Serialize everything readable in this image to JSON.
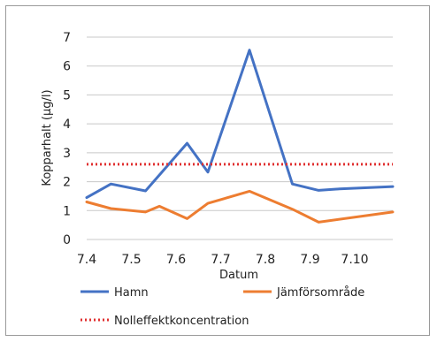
{
  "chart_data": {
    "type": "line",
    "title": "",
    "xlabel": "Datum",
    "ylabel": "Kopparhalt (µg/l)",
    "x_tick_labels": [
      "7.4",
      "7.5",
      "7.6",
      "7.7",
      "7.8",
      "7.9",
      "7.10"
    ],
    "ylim": [
      0,
      7
    ],
    "y_ticks": [
      0,
      1,
      2,
      3,
      4,
      5,
      6,
      7
    ],
    "grid": true,
    "legend_position": "bottom",
    "series": [
      {
        "name": "Hamn",
        "color": "#4472c4",
        "x": [
          0.0,
          0.35,
          0.85,
          1.45,
          1.75,
          2.35,
          2.97,
          3.35,
          3.65,
          4.42
        ],
        "values": [
          1.45,
          1.92,
          1.68,
          3.33,
          2.33,
          6.55,
          1.92,
          1.7,
          1.75,
          1.83
        ]
      },
      {
        "name": "Jämförsområde",
        "color": "#ed7d31",
        "x": [
          0.0,
          0.35,
          0.85,
          1.05,
          1.45,
          1.75,
          2.35,
          2.97,
          3.35,
          4.42
        ],
        "values": [
          1.3,
          1.07,
          0.95,
          1.15,
          0.72,
          1.25,
          1.67,
          1.05,
          0.6,
          0.95
        ]
      },
      {
        "name": "Nolleffektkoncentration",
        "color": "#e03030",
        "style": "dotted",
        "x": [
          0.0,
          4.42
        ],
        "values": [
          2.6,
          2.6
        ]
      }
    ]
  }
}
